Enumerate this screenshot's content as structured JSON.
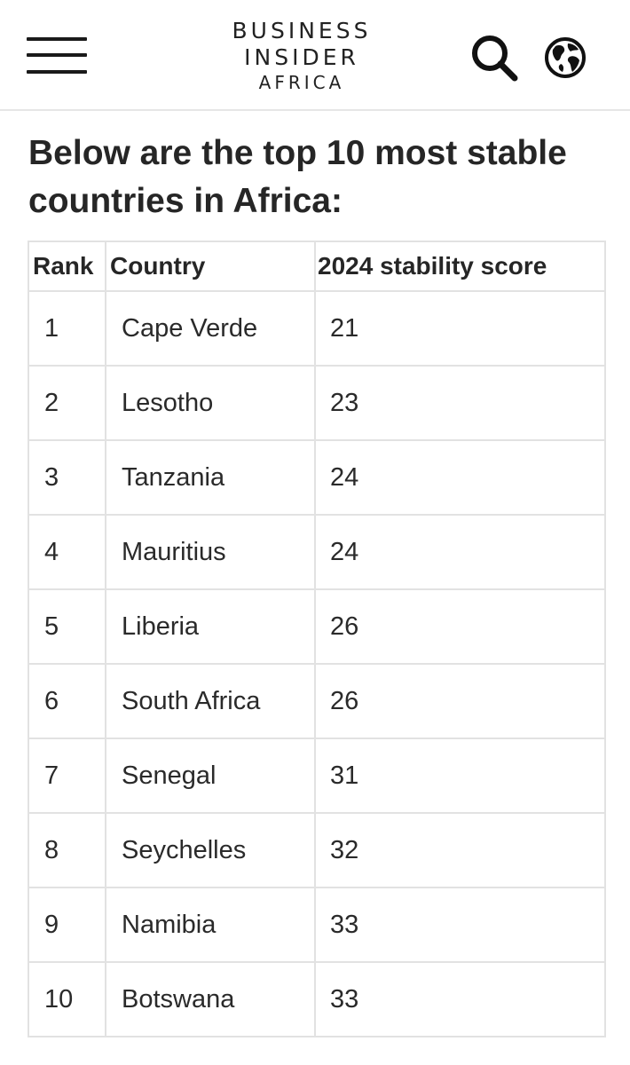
{
  "header": {
    "logo_line1": "BUSINESS",
    "logo_line2": "INSIDER",
    "logo_line3": "AFRICA",
    "icons": [
      "hamburger-menu-icon",
      "search-icon",
      "globe-icon"
    ]
  },
  "article": {
    "heading": "Below are the top 10 most stable countries in Africa:"
  },
  "table": {
    "columns": [
      "Rank",
      "Country",
      "2024 stability score"
    ],
    "rows": [
      {
        "rank": "1",
        "country": "Cape Verde",
        "score": "21"
      },
      {
        "rank": "2",
        "country": "Lesotho",
        "score": "23"
      },
      {
        "rank": "3",
        "country": "Tanzania",
        "score": "24"
      },
      {
        "rank": "4",
        "country": "Mauritius",
        "score": "24"
      },
      {
        "rank": "5",
        "country": "Liberia",
        "score": "26"
      },
      {
        "rank": "6",
        "country": "South Africa",
        "score": "26"
      },
      {
        "rank": "7",
        "country": "Senegal",
        "score": "31"
      },
      {
        "rank": "8",
        "country": "Seychelles",
        "score": "32"
      },
      {
        "rank": "9",
        "country": "Namibia",
        "score": "33"
      },
      {
        "rank": "10",
        "country": "Botswana",
        "score": "33"
      }
    ]
  }
}
